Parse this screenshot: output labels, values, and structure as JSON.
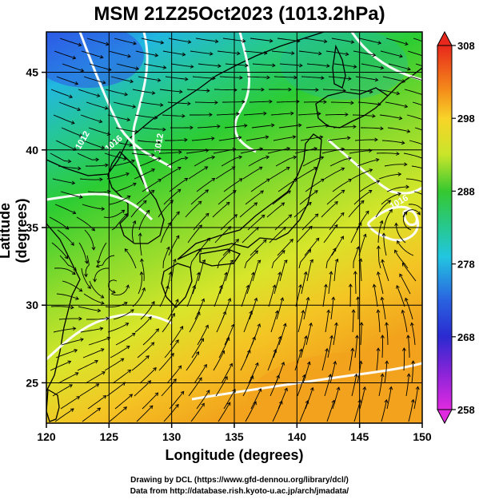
{
  "title": "MSM 21Z25Oct2023 (1013.2hPa)",
  "axes": {
    "xlabel": "Longitude (degrees)",
    "ylabel": "Latitude  (degrees)",
    "lon_range": [
      120,
      150
    ],
    "lat_range": [
      22.4,
      47.6
    ],
    "x_ticks": [
      "120",
      "125",
      "130",
      "135",
      "140",
      "145",
      "150"
    ],
    "y_ticks": [
      "25",
      "30",
      "35",
      "40",
      "45"
    ]
  },
  "colorbar": {
    "range": [
      258,
      308
    ],
    "ticks": [
      "308",
      "298",
      "288",
      "278",
      "268",
      "258"
    ]
  },
  "isobars": [
    "1012",
    "1016",
    "1012",
    "1016"
  ],
  "credits": {
    "line1": "Drawing by DCL (https://www.gfd-dennou.org/library/dcl/)",
    "line2": "Data from http://database.rish.kyoto-u.ac.jp/arch/jmadata/"
  },
  "colors": {
    "cold": "#2a5fe0",
    "mid": "#22cc22",
    "warm": "#f3a21e",
    "land_outline": "#000000",
    "isobar": "#ffffff"
  }
}
